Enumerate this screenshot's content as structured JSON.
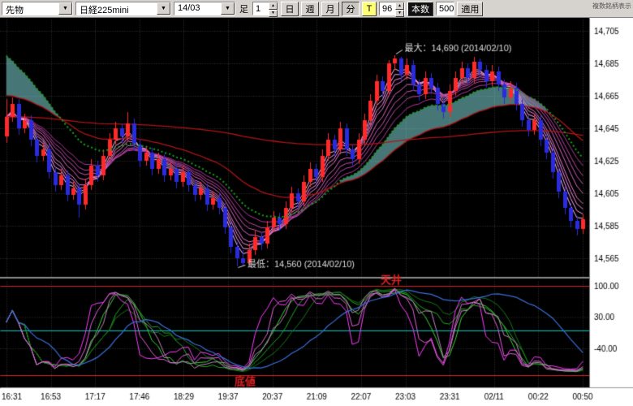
{
  "toolbar": {
    "instrument_type": "先物",
    "symbol": "日経225mini",
    "contract_month": "14/03",
    "timeframe_label": "足",
    "interval_value": "1",
    "period_buttons": [
      "日",
      "週",
      "月",
      "分"
    ],
    "tick_button": "T",
    "bars_visible": "96",
    "bars_label": "本数",
    "bars_total": "500",
    "apply_label": "適用",
    "corner_text": "複数銘柄表示"
  },
  "chart_data": {
    "type": "candlestick",
    "instrument": "日経225mini 14/03",
    "y_axis": {
      "tick_labels": [
        "14,705",
        "14,685",
        "14,665",
        "14,645",
        "14,625",
        "14,605",
        "14,585",
        "14,565"
      ],
      "tick_values": [
        14705,
        14685,
        14665,
        14645,
        14625,
        14605,
        14585,
        14565
      ]
    },
    "x_axis": {
      "tick_labels": [
        "16:31",
        "16:53",
        "17:17",
        "17:46",
        "18:29",
        "19:37",
        "20:37",
        "21:09",
        "22:07",
        "23:03",
        "23:31",
        "02/11",
        "00:22",
        "00:50"
      ]
    },
    "annotations": {
      "max_label": "最大：14,690 (2014/02/10)",
      "max_value": 14690,
      "max_bar": 64,
      "min_label": "最低：14,560 (2014/02/10)",
      "min_value": 14560,
      "min_bar": 38
    },
    "candles": [
      [
        14640,
        14663,
        14636,
        14652
      ],
      [
        14652,
        14664,
        14649,
        14660
      ],
      [
        14660,
        14663,
        14641,
        14645
      ],
      [
        14645,
        14654,
        14642,
        14650
      ],
      [
        14650,
        14653,
        14634,
        14638
      ],
      [
        14638,
        14641,
        14624,
        14628
      ],
      [
        14628,
        14636,
        14625,
        14632
      ],
      [
        14632,
        14635,
        14614,
        14618
      ],
      [
        14618,
        14621,
        14606,
        14610
      ],
      [
        14610,
        14620,
        14607,
        14616
      ],
      [
        14616,
        14619,
        14600,
        14604
      ],
      [
        14604,
        14612,
        14601,
        14608
      ],
      [
        14608,
        14611,
        14590,
        14598
      ],
      [
        14598,
        14614,
        14595,
        14610
      ],
      [
        14610,
        14626,
        14607,
        14622
      ],
      [
        14622,
        14625,
        14612,
        14616
      ],
      [
        14616,
        14632,
        14613,
        14628
      ],
      [
        14628,
        14642,
        14625,
        14638
      ],
      [
        14638,
        14649,
        14635,
        14645
      ],
      [
        14645,
        14648,
        14636,
        14640
      ],
      [
        14640,
        14655,
        14637,
        14648
      ],
      [
        14648,
        14651,
        14631,
        14635
      ],
      [
        14635,
        14638,
        14621,
        14625
      ],
      [
        14625,
        14634,
        14622,
        14630
      ],
      [
        14630,
        14633,
        14616,
        14620
      ],
      [
        14620,
        14630,
        14617,
        14626
      ],
      [
        14626,
        14629,
        14612,
        14616
      ],
      [
        14616,
        14624,
        14613,
        14620
      ],
      [
        14620,
        14623,
        14608,
        14612
      ],
      [
        14612,
        14622,
        14609,
        14618
      ],
      [
        14618,
        14621,
        14606,
        14610
      ],
      [
        14610,
        14613,
        14600,
        14604
      ],
      [
        14604,
        14612,
        14601,
        14608
      ],
      [
        14608,
        14611,
        14594,
        14598
      ],
      [
        14598,
        14606,
        14595,
        14602
      ],
      [
        14602,
        14605,
        14592,
        14596
      ],
      [
        14596,
        14599,
        14580,
        14584
      ],
      [
        14584,
        14587,
        14568,
        14572
      ],
      [
        14572,
        14575,
        14560,
        14565
      ],
      [
        14565,
        14570,
        14560,
        14562
      ],
      [
        14562,
        14574,
        14561,
        14570
      ],
      [
        14570,
        14582,
        14567,
        14578
      ],
      [
        14578,
        14581,
        14570,
        14574
      ],
      [
        14574,
        14588,
        14571,
        14584
      ],
      [
        14584,
        14594,
        14581,
        14590
      ],
      [
        14590,
        14593,
        14582,
        14586
      ],
      [
        14586,
        14600,
        14583,
        14596
      ],
      [
        14596,
        14609,
        14593,
        14605
      ],
      [
        14605,
        14608,
        14596,
        14600
      ],
      [
        14600,
        14616,
        14597,
        14612
      ],
      [
        14612,
        14624,
        14609,
        14620
      ],
      [
        14620,
        14623,
        14611,
        14615
      ],
      [
        14615,
        14632,
        14612,
        14628
      ],
      [
        14628,
        14642,
        14625,
        14638
      ],
      [
        14638,
        14641,
        14628,
        14632
      ],
      [
        14632,
        14649,
        14629,
        14645
      ],
      [
        14645,
        14648,
        14628,
        14632
      ],
      [
        14632,
        14635,
        14622,
        14626
      ],
      [
        14626,
        14642,
        14623,
        14638
      ],
      [
        14638,
        14654,
        14635,
        14650
      ],
      [
        14650,
        14666,
        14647,
        14662
      ],
      [
        14662,
        14678,
        14659,
        14674
      ],
      [
        14674,
        14677,
        14664,
        14668
      ],
      [
        14668,
        14687,
        14665,
        14685
      ],
      [
        14685,
        14690,
        14681,
        14688
      ],
      [
        14688,
        14689,
        14674,
        14678
      ],
      [
        14678,
        14688,
        14675,
        14684
      ],
      [
        14684,
        14687,
        14668,
        14672
      ],
      [
        14672,
        14675,
        14662,
        14666
      ],
      [
        14666,
        14680,
        14663,
        14676
      ],
      [
        14676,
        14679,
        14666,
        14670
      ],
      [
        14670,
        14673,
        14656,
        14660
      ],
      [
        14660,
        14663,
        14651,
        14655
      ],
      [
        14655,
        14672,
        14652,
        14668
      ],
      [
        14668,
        14680,
        14665,
        14676
      ],
      [
        14676,
        14686,
        14673,
        14682
      ],
      [
        14682,
        14685,
        14672,
        14676
      ],
      [
        14676,
        14689,
        14673,
        14686
      ],
      [
        14686,
        14688,
        14677,
        14681
      ],
      [
        14681,
        14684,
        14670,
        14674
      ],
      [
        14674,
        14684,
        14671,
        14680
      ],
      [
        14680,
        14683,
        14668,
        14672
      ],
      [
        14672,
        14675,
        14660,
        14664
      ],
      [
        14664,
        14674,
        14661,
        14670
      ],
      [
        14670,
        14673,
        14656,
        14660
      ],
      [
        14660,
        14663,
        14646,
        14650
      ],
      [
        14650,
        14653,
        14640,
        14644
      ],
      [
        14644,
        14654,
        14641,
        14650
      ],
      [
        14650,
        14653,
        14634,
        14638
      ],
      [
        14638,
        14641,
        14626,
        14630
      ],
      [
        14630,
        14633,
        14614,
        14618
      ],
      [
        14618,
        14621,
        14602,
        14606
      ],
      [
        14606,
        14609,
        14592,
        14596
      ],
      [
        14596,
        14599,
        14584,
        14588
      ],
      [
        14588,
        14591,
        14579,
        14583
      ],
      [
        14583,
        14592,
        14580,
        14589
      ]
    ],
    "overlays": {
      "ribbon_periods": [
        3,
        4,
        5,
        6,
        8,
        10,
        12,
        15
      ],
      "ribbon_colors": [
        "#ffb8f4",
        "#ffa3ee",
        "#f78ee4",
        "#ec79d7",
        "#df66c9",
        "#d055bb",
        "#c046ac",
        "#b0399e"
      ],
      "green_ma": {
        "period": 18,
        "seed": 14694
      },
      "red_ma_1": {
        "period": 34,
        "seed": 14666
      },
      "red_ma_2": {
        "period": 200,
        "seed": 14652
      }
    },
    "oscillator": {
      "tick_labels": [
        "100.00",
        "30.00",
        "-40.00"
      ],
      "tick_values": [
        100,
        30,
        -40
      ],
      "ceiling_label": "天井",
      "floor_label": "底値",
      "ceiling_value": 100,
      "floor_value": -100,
      "zero_value": 0,
      "green_periods": [
        10,
        16,
        24
      ],
      "green_colors": [
        "#38d438",
        "#24a824",
        "#167816"
      ],
      "magenta_periods": [
        5,
        8,
        12
      ],
      "magenta_colors": [
        "#ff3dff",
        "#e263d8",
        "#bf86bb"
      ],
      "blue_period": 48,
      "blue_color": "#3a6fd8"
    },
    "colors": {
      "up": "#ff2a2a",
      "down": "#2b2bde",
      "bg": "#000000",
      "grid": "#3c3c3c",
      "green_ma": "#17a517",
      "red_ma": "#b01515",
      "cloud": "rgba(140,235,235,0.5)",
      "level_red": "#dd2222",
      "cyan_line": "#00cccc",
      "axis_bg": "#ffffff",
      "axis_text": "#000000",
      "annotation": "#dddddd"
    }
  }
}
